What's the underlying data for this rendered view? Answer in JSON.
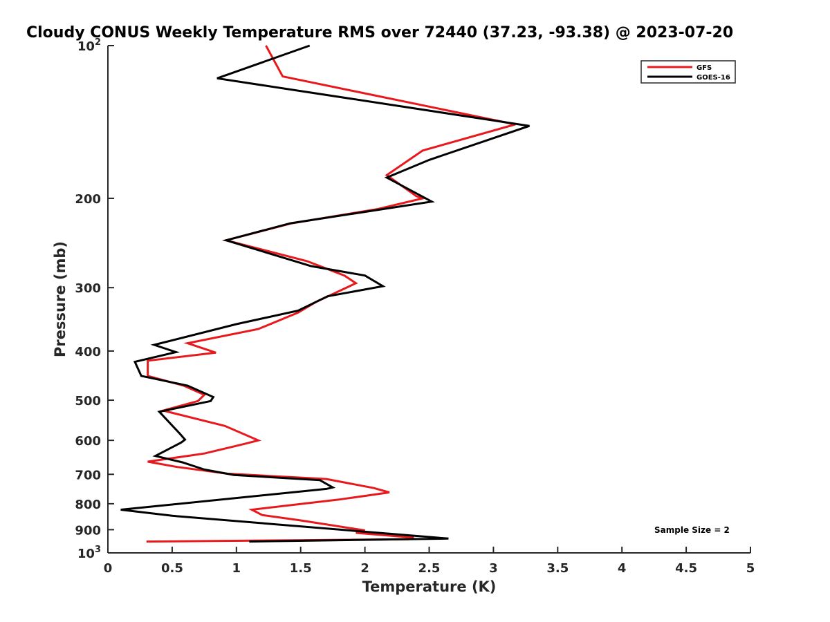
{
  "chart_data": {
    "type": "line",
    "title": "Cloudy CONUS Weekly Temperature RMS over 72440 (37.23, -93.38) @ 2023-07-20",
    "xlabel": "Temperature (K)",
    "ylabel": "Pressure (mb)",
    "xlim": [
      0,
      5
    ],
    "ylim": [
      100,
      1000
    ],
    "y_scale": "log",
    "y_direction": "reversed",
    "x_ticks": [
      "0",
      "0.5",
      "1",
      "1.5",
      "2",
      "2.5",
      "3",
      "3.5",
      "4",
      "4.5",
      "5"
    ],
    "y_ticks": [
      {
        "value": 100,
        "base": "10",
        "exp": "2"
      },
      {
        "value": 200,
        "label": "200"
      },
      {
        "value": 300,
        "label": "300"
      },
      {
        "value": 400,
        "label": "400"
      },
      {
        "value": 500,
        "label": "500"
      },
      {
        "value": 600,
        "label": "600"
      },
      {
        "value": 700,
        "label": "700"
      },
      {
        "value": 800,
        "label": "800"
      },
      {
        "value": 900,
        "label": "900"
      },
      {
        "value": 1000,
        "base": "10",
        "exp": "3"
      }
    ],
    "grid": false,
    "legend_position": "top-right",
    "annotation": "Sample Size = 2",
    "series": [
      {
        "name": "GFS",
        "color": "#e8191c",
        "points": [
          [
            1.23,
            100
          ],
          [
            1.36,
            115
          ],
          [
            3.17,
            143
          ],
          [
            2.45,
            161
          ],
          [
            2.17,
            180
          ],
          [
            2.4,
            198
          ],
          [
            2.45,
            200
          ],
          [
            2.1,
            210
          ],
          [
            1.43,
            224
          ],
          [
            0.92,
            242
          ],
          [
            1.55,
            266
          ],
          [
            1.84,
            284
          ],
          [
            1.93,
            294
          ],
          [
            1.62,
            320
          ],
          [
            1.48,
            336
          ],
          [
            1.17,
            362
          ],
          [
            0.62,
            386
          ],
          [
            0.84,
            403
          ],
          [
            0.31,
            418
          ],
          [
            0.31,
            448
          ],
          [
            0.59,
            468
          ],
          [
            0.75,
            488
          ],
          [
            0.7,
            502
          ],
          [
            0.43,
            524
          ],
          [
            0.91,
            562
          ],
          [
            1.17,
            600
          ],
          [
            1.06,
            610
          ],
          [
            0.75,
            637
          ],
          [
            0.31,
            661
          ],
          [
            0.54,
            677
          ],
          [
            0.93,
            698
          ],
          [
            1.7,
            715
          ],
          [
            2.07,
            745
          ],
          [
            2.19,
            760
          ],
          [
            1.8,
            785
          ],
          [
            1.12,
            822
          ],
          [
            1.2,
            842
          ],
          [
            1.5,
            863
          ],
          [
            2.0,
            903
          ],
          [
            1.93,
            913
          ],
          [
            2.38,
            933
          ],
          [
            2.34,
            940
          ],
          [
            0.3,
            950
          ]
        ]
      },
      {
        "name": "GOES-16",
        "color": "#000000",
        "points": [
          [
            1.57,
            100
          ],
          [
            0.85,
            116
          ],
          [
            3.28,
            144
          ],
          [
            2.5,
            168
          ],
          [
            2.17,
            182
          ],
          [
            2.52,
            203
          ],
          [
            1.42,
            224
          ],
          [
            0.92,
            242
          ],
          [
            1.58,
            272
          ],
          [
            2.0,
            284
          ],
          [
            2.14,
            298
          ],
          [
            1.71,
            312
          ],
          [
            1.48,
            333
          ],
          [
            1.0,
            354
          ],
          [
            0.36,
            389
          ],
          [
            0.53,
            402
          ],
          [
            0.21,
            420
          ],
          [
            0.26,
            448
          ],
          [
            0.62,
            468
          ],
          [
            0.82,
            493
          ],
          [
            0.8,
            502
          ],
          [
            0.4,
            527
          ],
          [
            0.56,
            582
          ],
          [
            0.6,
            598
          ],
          [
            0.57,
            606
          ],
          [
            0.37,
            644
          ],
          [
            0.58,
            663
          ],
          [
            0.75,
            685
          ],
          [
            0.98,
            702
          ],
          [
            1.65,
            719
          ],
          [
            1.75,
            743
          ],
          [
            1.7,
            748
          ],
          [
            0.1,
            822
          ],
          [
            0.5,
            845
          ],
          [
            2.65,
            937
          ],
          [
            1.1,
            950
          ]
        ]
      }
    ]
  }
}
